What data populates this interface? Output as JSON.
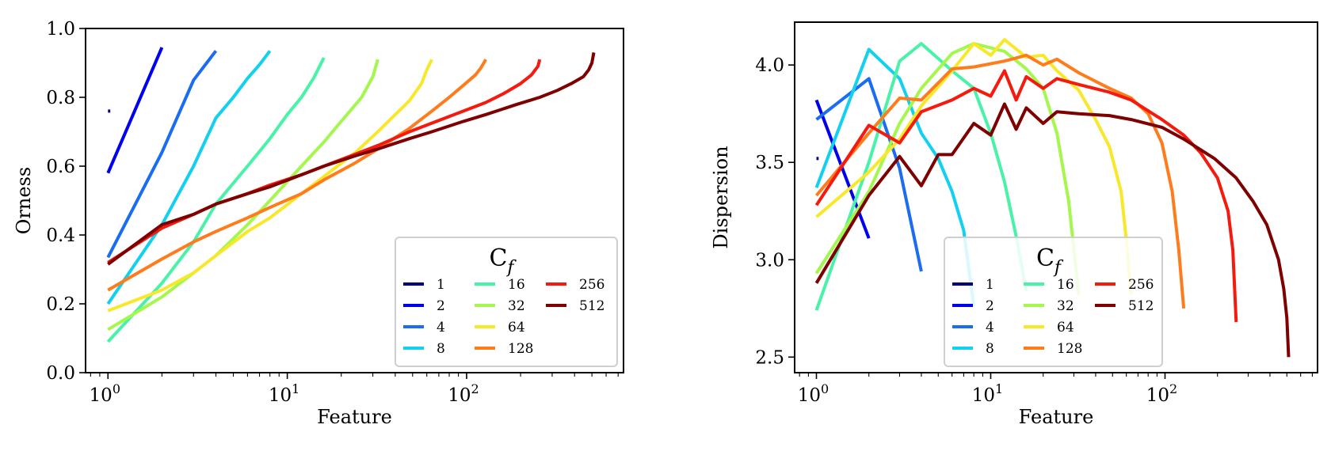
{
  "colors": {
    "1": "#00007f",
    "2": "#0000f1",
    "4": "#1a6cf0",
    "8": "#12d0f0",
    "16": "#48f3a8",
    "32": "#a4f74c",
    "64": "#f9e82a",
    "128": "#ff7c1c",
    "256": "#f41a0e",
    "512": "#7f0000"
  },
  "chart_data": [
    {
      "type": "line",
      "xscale": "log",
      "xlabel": "Feature",
      "ylabel": "Orness",
      "xlim": [
        0.75,
        750
      ],
      "ylim": [
        0.0,
        1.0
      ],
      "yticks": [
        "0.0",
        "0.2",
        "0.4",
        "0.6",
        "0.8",
        "1.0"
      ],
      "ytick_values": [
        0.0,
        0.2,
        0.4,
        0.6,
        0.8,
        1.0
      ],
      "xticks": [
        {
          "base": "10",
          "exp": "0",
          "value": 1
        },
        {
          "base": "10",
          "exp": "1",
          "value": 10
        },
        {
          "base": "10",
          "exp": "2",
          "value": 100
        }
      ],
      "legend": {
        "title_main": "C",
        "title_sub": "f",
        "location": "lower right",
        "entries": [
          "1",
          "2",
          "4",
          "8",
          "16",
          "32",
          "64",
          "128",
          "256",
          "512"
        ]
      },
      "series": [
        {
          "name": "1",
          "x": [
            1,
            1.03
          ],
          "y": [
            0.76,
            0.76
          ]
        },
        {
          "name": "2",
          "x": [
            1,
            2
          ],
          "y": [
            0.58,
            0.945
          ]
        },
        {
          "name": "4",
          "x": [
            1,
            2,
            3,
            4
          ],
          "y": [
            0.335,
            0.64,
            0.85,
            0.935
          ]
        },
        {
          "name": "8",
          "x": [
            1,
            2,
            3,
            4,
            5,
            6,
            7,
            8
          ],
          "y": [
            0.2,
            0.43,
            0.6,
            0.74,
            0.8,
            0.855,
            0.895,
            0.935
          ]
        },
        {
          "name": "16",
          "x": [
            1,
            2,
            3,
            4,
            6,
            8,
            10,
            12,
            14,
            16
          ],
          "y": [
            0.09,
            0.26,
            0.38,
            0.49,
            0.6,
            0.68,
            0.75,
            0.8,
            0.855,
            0.915
          ]
        },
        {
          "name": "32",
          "x": [
            1,
            2,
            3,
            4,
            6,
            8,
            12,
            16,
            20,
            26,
            30,
            32
          ],
          "y": [
            0.125,
            0.22,
            0.29,
            0.34,
            0.43,
            0.5,
            0.6,
            0.67,
            0.73,
            0.8,
            0.86,
            0.91
          ]
        },
        {
          "name": "64",
          "x": [
            1,
            2,
            3,
            4,
            6,
            8,
            12,
            16,
            24,
            32,
            40,
            48,
            56,
            60,
            64
          ],
          "y": [
            0.18,
            0.24,
            0.29,
            0.34,
            0.41,
            0.45,
            0.52,
            0.57,
            0.64,
            0.7,
            0.75,
            0.79,
            0.84,
            0.88,
            0.91
          ]
        },
        {
          "name": "128",
          "x": [
            1,
            2,
            3,
            4,
            6,
            8,
            12,
            16,
            24,
            32,
            48,
            64,
            80,
            96,
            112,
            120,
            128
          ],
          "y": [
            0.24,
            0.33,
            0.38,
            0.41,
            0.45,
            0.48,
            0.52,
            0.56,
            0.61,
            0.65,
            0.71,
            0.76,
            0.8,
            0.835,
            0.865,
            0.885,
            0.91
          ]
        },
        {
          "name": "256",
          "x": [
            1,
            2,
            3,
            4,
            6,
            8,
            12,
            16,
            24,
            32,
            48,
            64,
            96,
            128,
            160,
            200,
            230,
            250,
            256
          ],
          "y": [
            0.32,
            0.42,
            0.46,
            0.49,
            0.52,
            0.545,
            0.575,
            0.6,
            0.635,
            0.66,
            0.7,
            0.725,
            0.76,
            0.785,
            0.81,
            0.84,
            0.865,
            0.89,
            0.91
          ]
        },
        {
          "name": "512",
          "x": [
            1,
            2,
            3,
            4,
            6,
            8,
            12,
            16,
            24,
            32,
            48,
            64,
            96,
            128,
            192,
            256,
            320,
            384,
            448,
            480,
            500,
            512
          ],
          "y": [
            0.315,
            0.43,
            0.46,
            0.49,
            0.52,
            0.54,
            0.575,
            0.6,
            0.63,
            0.65,
            0.68,
            0.7,
            0.73,
            0.75,
            0.78,
            0.8,
            0.82,
            0.84,
            0.86,
            0.88,
            0.9,
            0.93
          ]
        }
      ]
    },
    {
      "type": "line",
      "xscale": "log",
      "xlabel": "Feature",
      "ylabel": "Dispersion",
      "xlim": [
        0.75,
        750
      ],
      "ylim": [
        2.42,
        4.22
      ],
      "yticks": [
        "2.5",
        "3.0",
        "3.5",
        "4.0"
      ],
      "ytick_values": [
        2.5,
        3.0,
        3.5,
        4.0
      ],
      "xticks": [
        {
          "base": "10",
          "exp": "0",
          "value": 1
        },
        {
          "base": "10",
          "exp": "1",
          "value": 10
        },
        {
          "base": "10",
          "exp": "2",
          "value": 100
        }
      ],
      "legend": {
        "title_main": "C",
        "title_sub": "f",
        "location": "lower center",
        "entries": [
          "1",
          "2",
          "4",
          "8",
          "16",
          "32",
          "64",
          "128",
          "256",
          "512"
        ]
      },
      "series": [
        {
          "name": "1",
          "x": [
            1,
            1.03
          ],
          "y": [
            3.52,
            3.52
          ]
        },
        {
          "name": "2",
          "x": [
            1,
            2
          ],
          "y": [
            3.82,
            3.11
          ]
        },
        {
          "name": "4",
          "x": [
            1,
            2,
            3,
            4
          ],
          "y": [
            3.72,
            3.93,
            3.47,
            2.94
          ]
        },
        {
          "name": "8",
          "x": [
            1,
            2,
            3,
            4,
            5,
            6,
            7,
            8
          ],
          "y": [
            3.37,
            4.08,
            3.93,
            3.65,
            3.52,
            3.35,
            3.15,
            2.76
          ]
        },
        {
          "name": "16",
          "x": [
            1,
            2,
            3,
            4,
            6,
            8,
            10,
            12,
            14,
            16
          ],
          "y": [
            2.74,
            3.5,
            4.02,
            4.11,
            3.97,
            3.88,
            3.65,
            3.4,
            3.12,
            2.84
          ]
        },
        {
          "name": "32",
          "x": [
            1,
            2,
            3,
            4,
            6,
            8,
            12,
            16,
            20,
            24,
            28,
            30,
            32
          ],
          "y": [
            2.93,
            3.35,
            3.7,
            3.88,
            4.06,
            4.11,
            4.07,
            3.98,
            3.88,
            3.65,
            3.3,
            3.05,
            2.82
          ]
        },
        {
          "name": "64",
          "x": [
            1,
            2,
            3,
            4,
            6,
            8,
            10,
            12,
            16,
            20,
            24,
            32,
            40,
            48,
            56,
            60,
            64
          ],
          "y": [
            3.22,
            3.45,
            3.62,
            3.79,
            3.97,
            4.11,
            4.05,
            4.13,
            4.04,
            4.05,
            3.97,
            3.87,
            3.72,
            3.58,
            3.35,
            3.1,
            2.82
          ]
        },
        {
          "name": "128",
          "x": [
            1,
            2,
            3,
            4,
            6,
            8,
            12,
            16,
            20,
            24,
            32,
            48,
            64,
            80,
            96,
            110,
            120,
            128
          ],
          "y": [
            3.33,
            3.65,
            3.83,
            3.82,
            3.98,
            3.99,
            4.02,
            4.05,
            4.0,
            4.03,
            3.96,
            3.88,
            3.83,
            3.75,
            3.6,
            3.35,
            3.05,
            2.75
          ]
        },
        {
          "name": "256",
          "x": [
            1,
            2,
            3,
            4,
            6,
            8,
            10,
            12,
            14,
            16,
            20,
            24,
            32,
            48,
            64,
            96,
            128,
            160,
            200,
            230,
            245,
            256
          ],
          "y": [
            3.28,
            3.69,
            3.6,
            3.76,
            3.82,
            3.88,
            3.84,
            3.97,
            3.82,
            3.94,
            3.88,
            3.93,
            3.9,
            3.86,
            3.82,
            3.72,
            3.64,
            3.55,
            3.42,
            3.25,
            3.05,
            2.68
          ]
        },
        {
          "name": "512",
          "x": [
            1,
            2,
            3,
            4,
            5,
            6,
            8,
            10,
            12,
            14,
            16,
            20,
            24,
            32,
            48,
            64,
            96,
            128,
            192,
            256,
            320,
            384,
            448,
            480,
            500,
            512
          ],
          "y": [
            2.88,
            3.33,
            3.53,
            3.38,
            3.54,
            3.54,
            3.7,
            3.64,
            3.8,
            3.67,
            3.78,
            3.7,
            3.76,
            3.75,
            3.74,
            3.72,
            3.68,
            3.62,
            3.52,
            3.42,
            3.3,
            3.18,
            3.0,
            2.85,
            2.7,
            2.5
          ]
        }
      ]
    }
  ]
}
